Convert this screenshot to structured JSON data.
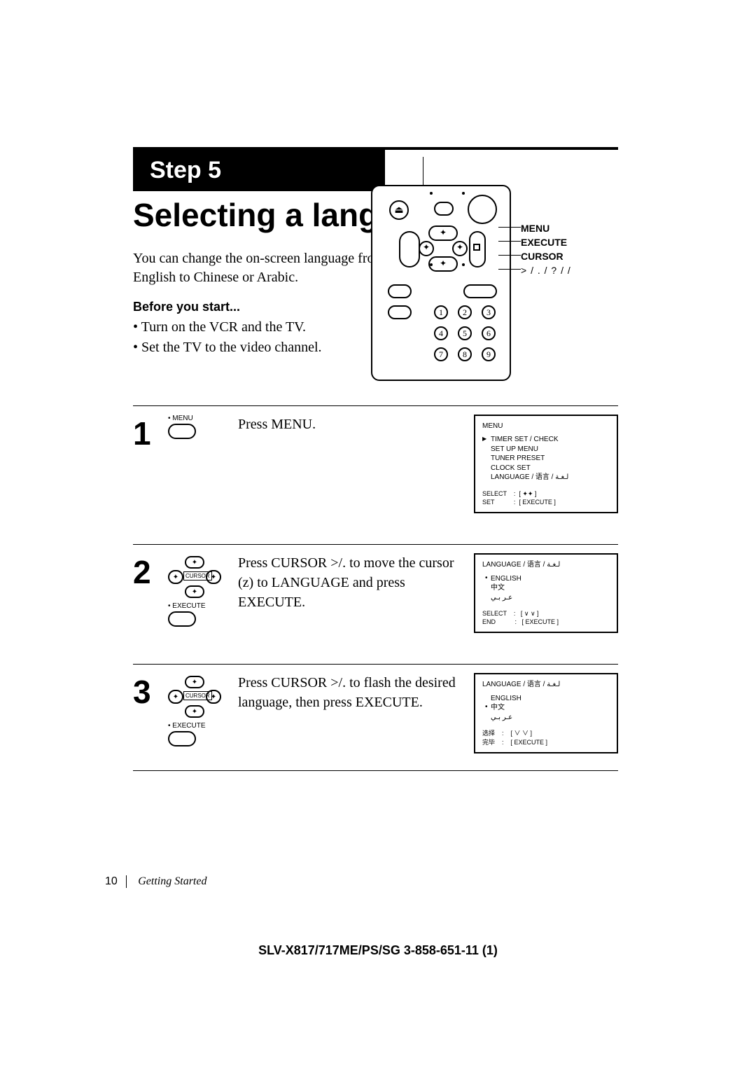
{
  "step_label": "Step 5",
  "title": "Selecting a language",
  "intro": "You can change the on-screen language from English to Chinese or Arabic.",
  "before_heading": "Before you start...",
  "before_items": [
    "Turn on the VCR and the TV.",
    "Set the TV to the video channel."
  ],
  "remote_callouts": {
    "menu": "MENU",
    "execute": "EXECUTE",
    "cursor": "CURSOR",
    "arrows": "> /  . /  ? /  /"
  },
  "steps": [
    {
      "n": "1",
      "icon_label": "• MENU",
      "text": "Press MENU.",
      "screen": {
        "title": "MENU",
        "lines": [
          {
            "t": "TIMER SET / CHECK",
            "cursor": true
          },
          {
            "t": "SET UP MENU"
          },
          {
            "t": "TUNER PRESET"
          },
          {
            "t": "CLOCK SET"
          },
          {
            "t": "LANGUAGE / 语言 / ﻟـﻐـﺔ"
          }
        ],
        "footer": [
          "SELECT    :  [ ✦✦ ]",
          "SET           :  [ EXECUTE ]"
        ]
      }
    },
    {
      "n": "2",
      "icon_upper": "CURSOR",
      "icon_lower": "• EXECUTE",
      "text": "Press CURSOR >/. to move the cursor (z) to LANGUAGE and press EXECUTE.",
      "screen": {
        "title": "LANGUAGE / 语言 / ﻟـﻐـﺔ",
        "lines": [
          {
            "t": "ENGLISH",
            "dot": true
          },
          {
            "t": "中文"
          },
          {
            "t": "ﻋـﺮ ﺑـﻲ"
          }
        ],
        "footer": [
          "SELECT    :   [ ∨ ∨ ]",
          "END           :   [ EXECUTE ]"
        ]
      }
    },
    {
      "n": "3",
      "icon_upper": "CURSOR",
      "icon_lower": "• EXECUTE",
      "text": "Press CURSOR >/. to flash the desired language, then press EXECUTE.",
      "screen": {
        "title": "LANGUAGE / 语言 / ﻟـﻐـﺔ",
        "lines": [
          {
            "t": "ENGLISH"
          },
          {
            "t": "中文",
            "dot": true
          },
          {
            "t": "ﻋـﺮ ﺑـﻲ"
          }
        ],
        "footer": [
          "选择    :    [ ∨ ∨ ]",
          "完毕    :    [ EXECUTE ]"
        ]
      }
    }
  ],
  "page_number": "10",
  "section_name": "Getting Started",
  "footer_model": "SLV-X817/717ME/PS/SG    3-858-651-11 (1)"
}
